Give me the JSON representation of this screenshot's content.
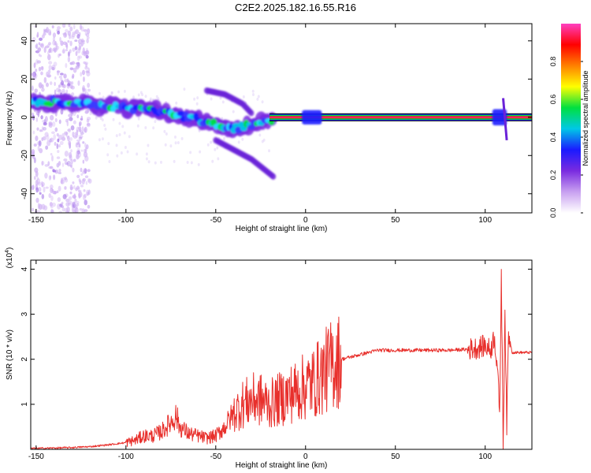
{
  "title": "C2E2.2025.182.16.55.R16",
  "colors": {
    "snr_line": "#e8302c",
    "background": "#ffffff",
    "axis": "#000000"
  },
  "chart_data": [
    {
      "type": "heatmap",
      "xlabel": "Height of straight line (km)",
      "ylabel": "Frequency (Hz)",
      "xlim": [
        -153,
        126
      ],
      "ylim": [
        -50,
        49
      ],
      "x_ticks": [
        -150,
        -100,
        -50,
        0,
        50,
        100
      ],
      "y_ticks": [
        -40,
        -20,
        0,
        20,
        40
      ],
      "colorbar": {
        "label": "Normalized spectral amplitude",
        "range": [
          0,
          1
        ],
        "ticks": [
          0.0,
          0.2,
          0.4,
          0.6,
          0.8
        ],
        "tick_labels": [
          "0.0",
          "0.2",
          "0.4",
          "0.6",
          "0.8"
        ],
        "colormap": [
          "#ffffff",
          "#c8a0f0",
          "#7a2be0",
          "#1a1aff",
          "#00c8e6",
          "#00e040",
          "#ffff00",
          "#ff8000",
          "#ff0000",
          "#ff40c0"
        ]
      },
      "ridge": {
        "x": [
          -152,
          -140,
          -130,
          -120,
          -110,
          -100,
          -90,
          -80,
          -70,
          -60,
          -50,
          -40,
          -30,
          -25,
          -20,
          -15,
          -10,
          -5,
          0,
          5,
          10,
          20,
          50,
          90,
          100,
          105,
          110,
          115,
          125
        ],
        "y": [
          8,
          8,
          7,
          7,
          6,
          5,
          5,
          3,
          1,
          -1,
          -4,
          -6,
          -4,
          -3,
          -2,
          0,
          0,
          0,
          1,
          2,
          1,
          0,
          0,
          0,
          0,
          0,
          2,
          0,
          0
        ]
      },
      "upper_branch": {
        "x": [
          -55,
          -45,
          -35,
          -30
        ],
        "y": [
          14,
          12,
          7,
          2
        ]
      },
      "lower_branch": {
        "x": [
          -50,
          -40,
          -30,
          -22,
          -18
        ],
        "y": [
          -12,
          -17,
          -22,
          -28,
          -31
        ]
      }
    },
    {
      "type": "line",
      "xlabel": "Height of straight line (km)",
      "ylabel": "SNR (10 * v/v)",
      "y_multiplier": "(x10",
      "y_multiplier_exp": "4",
      "y_multiplier_close": ")",
      "xlim": [
        -153,
        126
      ],
      "ylim": [
        0,
        4.2
      ],
      "x_ticks": [
        -150,
        -100,
        -50,
        0,
        50,
        100
      ],
      "y_ticks": [
        1,
        2,
        3,
        4
      ],
      "series": [
        {
          "x": [
            -153,
            -140,
            -130,
            -120,
            -110,
            -100,
            -95,
            -90,
            -85,
            -80,
            -75,
            -72,
            -70,
            -65,
            -60,
            -55,
            -50,
            -45,
            -40,
            -35,
            -30,
            -25,
            -20,
            -15,
            -10,
            -5,
            0,
            5,
            10,
            15,
            20,
            30,
            40,
            50,
            60,
            70,
            80,
            90,
            95,
            100,
            103,
            105,
            107,
            108,
            109,
            110,
            111,
            112,
            113,
            115,
            118,
            122,
            126
          ],
          "y": [
            0.02,
            0.03,
            0.04,
            0.06,
            0.1,
            0.15,
            0.2,
            0.3,
            0.3,
            0.4,
            0.6,
            0.75,
            0.5,
            0.35,
            0.3,
            0.25,
            0.3,
            0.5,
            0.8,
            1.0,
            1.1,
            1.1,
            1.0,
            1.1,
            1.2,
            1.3,
            1.4,
            1.5,
            1.7,
            1.9,
            2.0,
            2.1,
            2.2,
            2.2,
            2.2,
            2.2,
            2.2,
            2.22,
            2.25,
            2.3,
            2.2,
            2.5,
            1.8,
            0.6,
            3.9,
            0.1,
            3.1,
            0.5,
            2.6,
            2.15,
            2.15,
            2.15,
            2.15
          ]
        }
      ]
    }
  ]
}
